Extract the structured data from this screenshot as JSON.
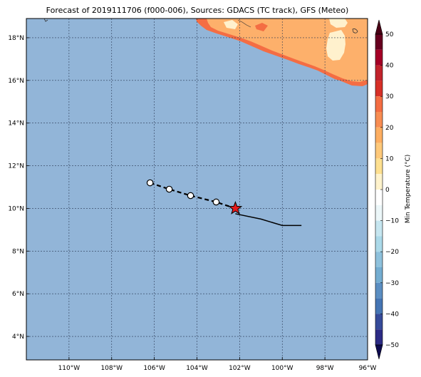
{
  "title": "Forecast of 2019111706 (f000-006), Sources: GDACS (TC track), GFS (Meteo)",
  "map": {
    "lon_range": [
      -112,
      -96
    ],
    "lat_range": [
      2.9,
      18.9
    ],
    "lon_ticks": [
      -110,
      -108,
      -106,
      -104,
      -102,
      -100,
      -98,
      -96
    ],
    "lon_tick_labels": [
      "110°W",
      "108°W",
      "106°W",
      "104°W",
      "102°W",
      "100°W",
      "98°W",
      "96°W"
    ],
    "lat_ticks": [
      4,
      6,
      8,
      10,
      12,
      14,
      16,
      18
    ],
    "lat_tick_labels": [
      "4°N",
      "6°N",
      "8°N",
      "10°N",
      "12°N",
      "14°N",
      "16°N",
      "18°N"
    ],
    "gridlines": true,
    "ocean_color": "#92b5d8"
  },
  "forecast_track": {
    "points": [
      [
        -106.2,
        11.2
      ],
      [
        -105.3,
        10.9
      ],
      [
        -104.3,
        10.6
      ],
      [
        -103.1,
        10.3
      ],
      [
        -102.2,
        10.0
      ]
    ],
    "current_position": [
      -102.2,
      10.0
    ],
    "current_marker_color": "#e31a1c"
  },
  "past_track": {
    "points": [
      [
        -102.2,
        9.75
      ],
      [
        -101.0,
        9.5
      ],
      [
        -100.0,
        9.2
      ],
      [
        -99.1,
        9.2
      ]
    ]
  },
  "colorbar": {
    "label": "Min Temperature (°C)",
    "ticks": [
      50,
      40,
      30,
      20,
      10,
      0,
      -10,
      -20,
      -30,
      -40,
      -50
    ],
    "tick_labels": [
      "50",
      "40",
      "30",
      "20",
      "10",
      "0",
      "−10",
      "−20",
      "−30",
      "−40",
      "−50"
    ],
    "range": [
      -50,
      50
    ],
    "bins": [
      {
        "from": 45,
        "to": 50,
        "color": "#67001f"
      },
      {
        "from": 40,
        "to": 45,
        "color": "#a50026"
      },
      {
        "from": 35,
        "to": 40,
        "color": "#c2232c"
      },
      {
        "from": 30,
        "to": 35,
        "color": "#d73027"
      },
      {
        "from": 25,
        "to": 30,
        "color": "#f46d43"
      },
      {
        "from": 20,
        "to": 25,
        "color": "#f88d52"
      },
      {
        "from": 15,
        "to": 20,
        "color": "#fdae61"
      },
      {
        "from": 10,
        "to": 15,
        "color": "#fec97a"
      },
      {
        "from": 5,
        "to": 10,
        "color": "#fee090"
      },
      {
        "from": 0,
        "to": 5,
        "color": "#fff3cc"
      },
      {
        "from": -5,
        "to": 0,
        "color": "#ffffff"
      },
      {
        "from": -10,
        "to": -5,
        "color": "#ecf7f9"
      },
      {
        "from": -15,
        "to": -10,
        "color": "#c6e6f0"
      },
      {
        "from": -20,
        "to": -15,
        "color": "#abd9e9"
      },
      {
        "from": -25,
        "to": -20,
        "color": "#8ec1dc"
      },
      {
        "from": -30,
        "to": -25,
        "color": "#74add1"
      },
      {
        "from": -35,
        "to": -30,
        "color": "#5b8ec2"
      },
      {
        "from": -40,
        "to": -35,
        "color": "#4575b4"
      },
      {
        "from": -45,
        "to": -40,
        "color": "#364b9a"
      },
      {
        "from": -50,
        "to": -45,
        "color": "#2c2b85"
      }
    ],
    "extend_low_color": "#0d0a4f",
    "extend_high_color": "#4a0015"
  },
  "land_colors": {
    "warm": "#fdb06b",
    "hot": "#f46d43",
    "mild": "#fff1cd"
  }
}
